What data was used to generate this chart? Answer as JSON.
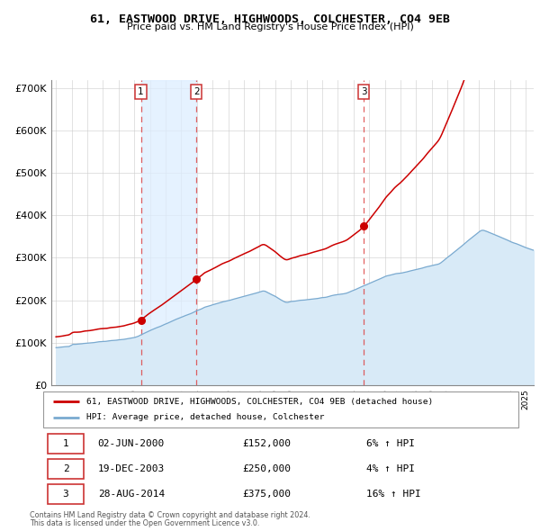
{
  "title": "61, EASTWOOD DRIVE, HIGHWOODS, COLCHESTER, CO4 9EB",
  "subtitle": "Price paid vs. HM Land Registry's House Price Index (HPI)",
  "legend_house": "61, EASTWOOD DRIVE, HIGHWOODS, COLCHESTER, CO4 9EB (detached house)",
  "legend_hpi": "HPI: Average price, detached house, Colchester",
  "footer1": "Contains HM Land Registry data © Crown copyright and database right 2024.",
  "footer2": "This data is licensed under the Open Government Licence v3.0.",
  "house_color": "#cc0000",
  "hpi_color": "#7aaad0",
  "hpi_fill_color": "#d8eaf7",
  "vline_color": "#dd4444",
  "shade_color": "#ddeeff",
  "transactions": [
    {
      "num": 1,
      "date": "02-JUN-2000",
      "price": "£152,000",
      "pct": "6% ↑ HPI",
      "year": 2000.42
    },
    {
      "num": 2,
      "date": "19-DEC-2003",
      "price": "£250,000",
      "pct": "4% ↑ HPI",
      "year": 2003.96
    },
    {
      "num": 3,
      "date": "28-AUG-2014",
      "price": "£375,000",
      "pct": "16% ↑ HPI",
      "year": 2014.65
    }
  ],
  "transaction_values": [
    152000,
    250000,
    375000
  ],
  "ylim": [
    0,
    720000
  ],
  "yticks": [
    0,
    100000,
    200000,
    300000,
    400000,
    500000,
    600000,
    700000
  ],
  "ytick_labels": [
    "£0",
    "£100K",
    "£200K",
    "£300K",
    "£400K",
    "£500K",
    "£600K",
    "£700K"
  ],
  "xmin": 1994.7,
  "xmax": 2025.5,
  "background_color": "#ffffff",
  "grid_color": "#cccccc"
}
